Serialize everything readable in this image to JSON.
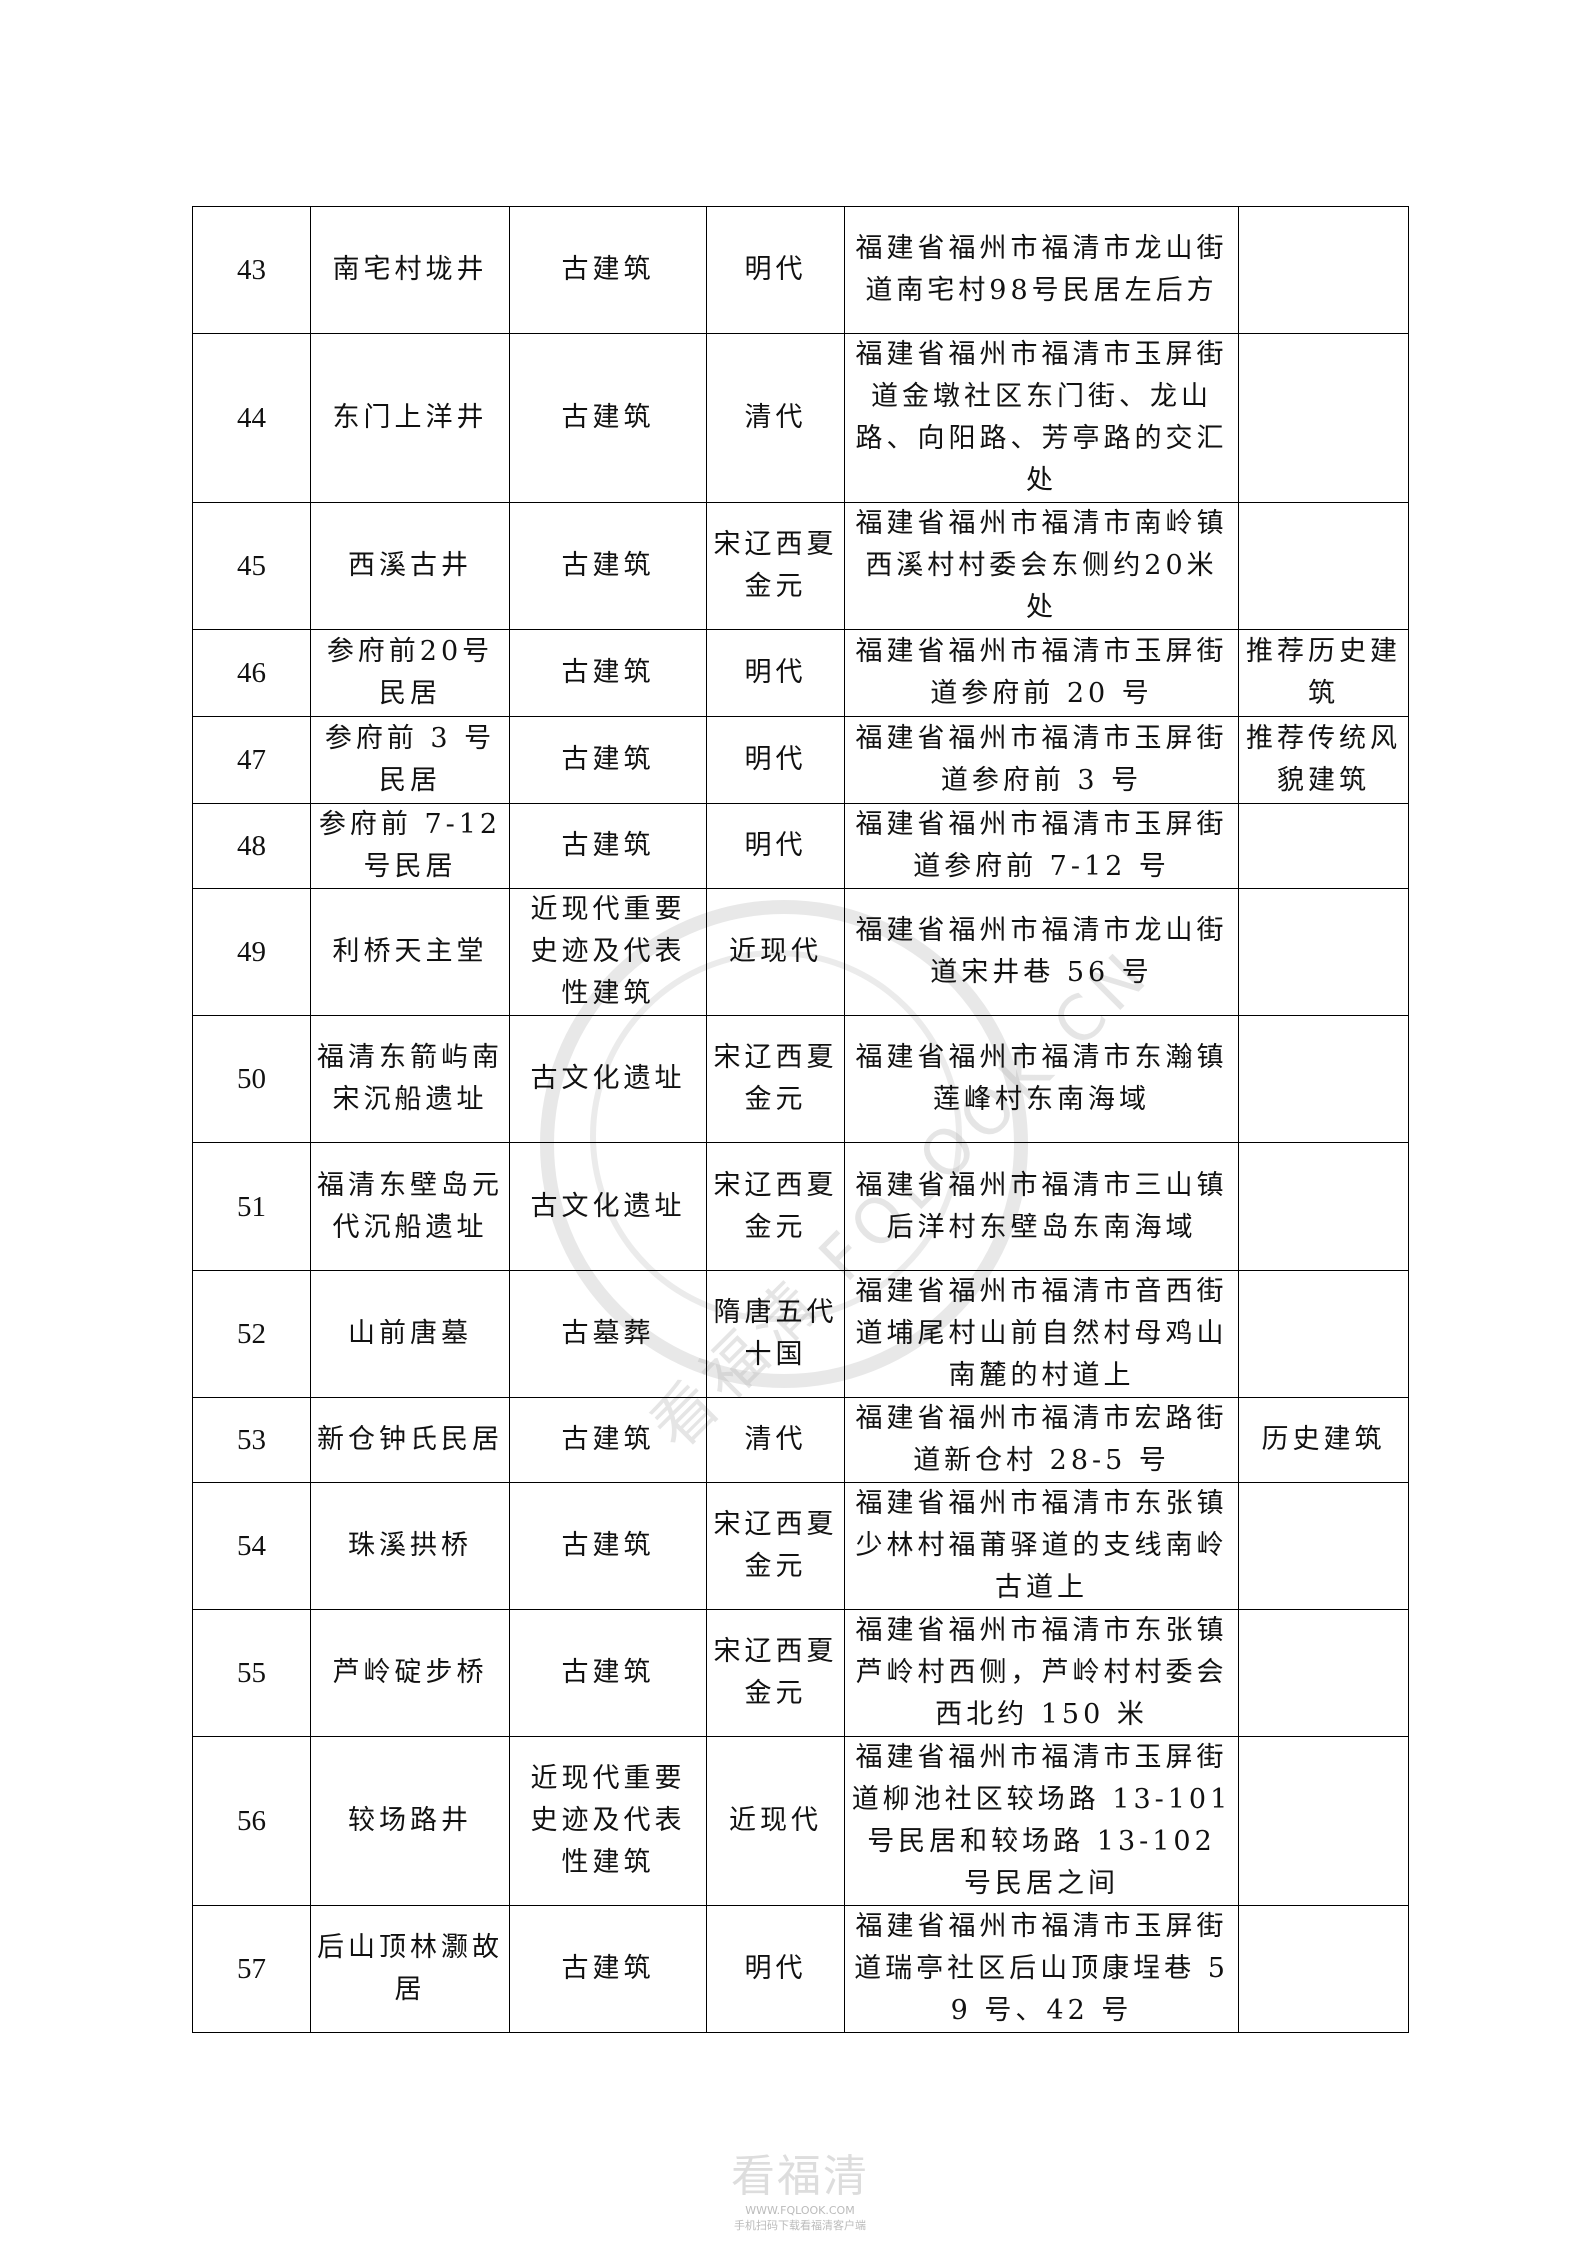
{
  "rows": [
    {
      "no": "43",
      "name": "南宅村垅井",
      "category": "古建筑",
      "era": "明代",
      "address": "福建省福州市福清市龙山街道南宅村98号民居左后方",
      "note": ""
    },
    {
      "no": "44",
      "name": "东门上洋井",
      "category": "古建筑",
      "era": "清代",
      "address": "福建省福州市福清市玉屏街道金墩社区东门街、龙山路、向阳路、芳亭路的交汇处",
      "note": ""
    },
    {
      "no": "45",
      "name": "西溪古井",
      "category": "古建筑",
      "era": "宋辽西夏金元",
      "address": "福建省福州市福清市南岭镇西溪村村委会东侧约20米处",
      "note": ""
    },
    {
      "no": "46",
      "name": "参府前20号民居",
      "category": "古建筑",
      "era": "明代",
      "address": "福建省福州市福清市玉屏街道参府前 20 号",
      "note": "推荐历史建筑"
    },
    {
      "no": "47",
      "name": "参府前 3 号民居",
      "category": "古建筑",
      "era": "明代",
      "address": "福建省福州市福清市玉屏街道参府前 3 号",
      "note": "推荐传统风貌建筑"
    },
    {
      "no": "48",
      "name": "参府前 7-12 号民居",
      "category": "古建筑",
      "era": "明代",
      "address": "福建省福州市福清市玉屏街道参府前 7-12 号",
      "note": ""
    },
    {
      "no": "49",
      "name": "利桥天主堂",
      "category": "近现代重要史迹及代表性建筑",
      "era": "近现代",
      "address": "福建省福州市福清市龙山街道宋井巷 56 号",
      "note": ""
    },
    {
      "no": "50",
      "name": "福清东箭屿南宋沉船遗址",
      "category": "古文化遗址",
      "era": "宋辽西夏金元",
      "address": "福建省福州市福清市东瀚镇莲峰村东南海域",
      "note": ""
    },
    {
      "no": "51",
      "name": "福清东壁岛元代沉船遗址",
      "category": "古文化遗址",
      "era": "宋辽西夏金元",
      "address": "福建省福州市福清市三山镇后洋村东壁岛东南海域",
      "note": ""
    },
    {
      "no": "52",
      "name": "山前唐墓",
      "category": "古墓葬",
      "era": "隋唐五代十国",
      "address": "福建省福州市福清市音西街道埔尾村山前自然村母鸡山南麓的村道上",
      "note": ""
    },
    {
      "no": "53",
      "name": "新仓钟氏民居",
      "category": "古建筑",
      "era": "清代",
      "address": "福建省福州市福清市宏路街道新仓村 28-5 号",
      "note": "历史建筑"
    },
    {
      "no": "54",
      "name": "珠溪拱桥",
      "category": "古建筑",
      "era": "宋辽西夏金元",
      "address": "福建省福州市福清市东张镇少林村福莆驿道的支线南岭古道上",
      "note": ""
    },
    {
      "no": "55",
      "name": "芦岭碇步桥",
      "category": "古建筑",
      "era": "宋辽西夏金元",
      "address": "福建省福州市福清市东张镇芦岭村西侧，芦岭村村委会西北约 150 米",
      "note": ""
    },
    {
      "no": "56",
      "name": "较场路井",
      "category": "近现代重要史迹及代表性建筑",
      "era": "近现代",
      "address": "福建省福州市福清市玉屏街道柳池社区较场路 13-101 号民居和较场路 13-102 号民居之间",
      "note": ""
    },
    {
      "no": "57",
      "name": "后山顶林灏故居",
      "category": "古建筑",
      "era": "明代",
      "address": "福建省福州市福清市玉屏街道瑞亭社区后山顶康埕巷 59 号、42 号",
      "note": ""
    }
  ],
  "watermark": {
    "text": "看福清 FQLOOK.CN"
  },
  "footer_logo": {
    "title": "看福清",
    "url": "WWW.FQLOOK.COM",
    "tagline": "手机扫码下载看福清客户端"
  }
}
